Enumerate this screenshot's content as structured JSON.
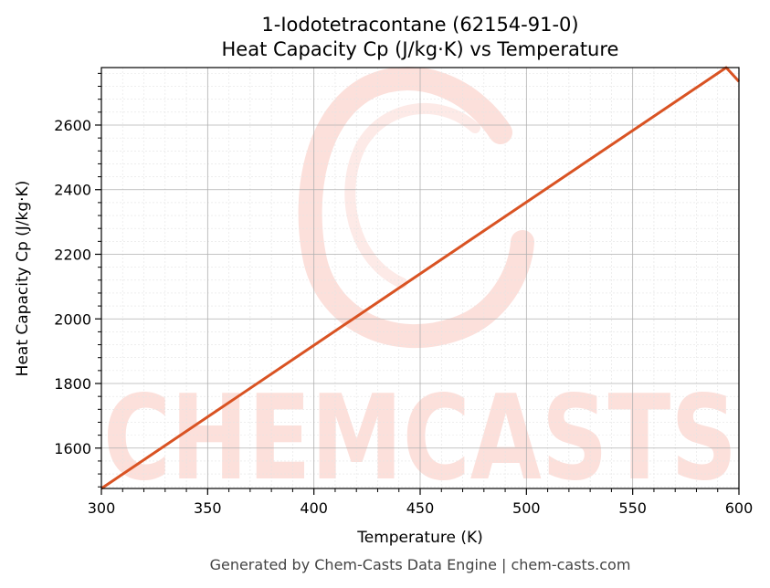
{
  "chart_data": {
    "type": "line",
    "title": "1-Iodotetracontane (62154-91-0)",
    "subtitle": "Heat Capacity Cp (J/kg·K) vs Temperature",
    "xlabel": "Temperature (K)",
    "ylabel": "Heat Capacity Cp (J/kg·K)",
    "xlim": [
      300,
      600
    ],
    "ylim": [
      1475,
      2778
    ],
    "xticks": [
      300,
      350,
      400,
      450,
      500,
      550,
      600
    ],
    "yticks": [
      1600,
      1800,
      2000,
      2200,
      2400,
      2600
    ],
    "grid": true,
    "legend": "none",
    "series": [
      {
        "color": "#d95323",
        "x": [
          300,
          594,
          600
        ],
        "y": [
          1475,
          2778,
          2735
        ]
      }
    ]
  },
  "watermark": "CHEMCASTS",
  "footer": "Generated by Chem-Casts Data Engine | chem-casts.com",
  "colors": {
    "line": "#d95323",
    "watermark": "#fbd6cf",
    "grid_major": "#b0b0b0",
    "grid_minor": "#e3e3e3"
  }
}
